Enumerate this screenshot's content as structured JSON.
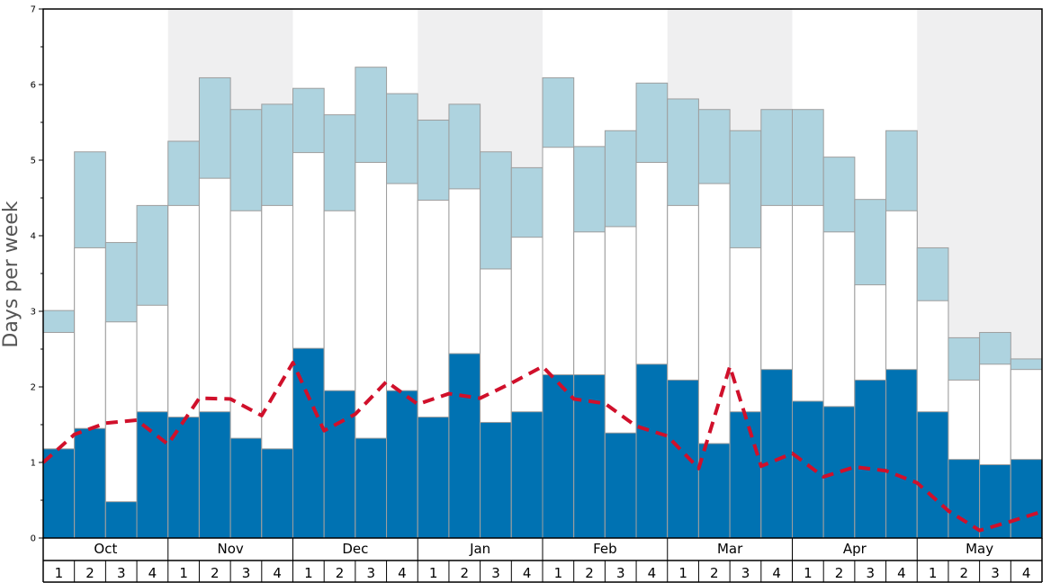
{
  "chart_data": {
    "type": "bar",
    "ylabel": "Days per week",
    "ylim": [
      0,
      7
    ],
    "y_ticks": [
      "0",
      "1",
      "2",
      "3",
      "4",
      "5",
      "6",
      "7"
    ],
    "months": [
      "Oct",
      "Nov",
      "Dec",
      "Jan",
      "Feb",
      "Mar",
      "Apr",
      "May"
    ],
    "week_labels": [
      "1",
      "2",
      "3",
      "4"
    ],
    "shaded_months": [
      "Nov",
      "Jan",
      "Mar",
      "May"
    ],
    "colors": {
      "dark": "#0072b2",
      "mid": "#ffffff",
      "light": "#aed3df",
      "line": "#d0102b",
      "shade": "#efeff0",
      "bar_edge": "#9e9e9e"
    },
    "series": [
      {
        "values": [
          1.18,
          1.45,
          0.48,
          1.67,
          1.6,
          1.67,
          1.32,
          1.18,
          2.51,
          1.95,
          1.32,
          1.95,
          1.6,
          2.44,
          1.53,
          1.67,
          2.16,
          2.16,
          1.39,
          2.3,
          2.09,
          1.25,
          1.67,
          2.23,
          1.81,
          1.74,
          2.09,
          2.23,
          1.67,
          1.04,
          0.97,
          1.04
        ]
      },
      {
        "values": [
          2.72,
          3.84,
          2.86,
          3.08,
          4.4,
          4.76,
          4.33,
          4.4,
          5.1,
          4.33,
          4.97,
          4.69,
          4.47,
          4.62,
          3.56,
          3.98,
          5.17,
          4.05,
          4.12,
          4.97,
          4.4,
          4.69,
          3.84,
          4.4,
          4.4,
          4.05,
          3.35,
          4.33,
          3.14,
          2.09,
          2.3,
          2.23
        ]
      },
      {
        "values": [
          3.01,
          5.11,
          3.91,
          4.4,
          5.25,
          6.09,
          5.67,
          5.74,
          5.95,
          5.6,
          6.23,
          5.88,
          5.53,
          5.74,
          5.11,
          4.9,
          6.09,
          5.18,
          5.39,
          6.02,
          5.81,
          5.67,
          5.39,
          5.67,
          5.67,
          5.04,
          4.48,
          5.39,
          3.84,
          2.65,
          2.72,
          2.37
        ]
      },
      {
        "type": "line",
        "values": [
          1.0,
          1.37,
          1.52,
          1.56,
          1.24,
          1.85,
          1.84,
          1.62,
          2.32,
          1.42,
          1.64,
          2.07,
          1.77,
          1.91,
          1.85,
          2.05,
          2.27,
          1.84,
          1.78,
          1.48,
          1.35,
          0.92,
          2.27,
          0.95,
          1.12,
          0.81,
          0.94,
          0.89,
          0.73,
          0.36,
          0.1,
          0.22,
          0.35
        ]
      }
    ]
  }
}
